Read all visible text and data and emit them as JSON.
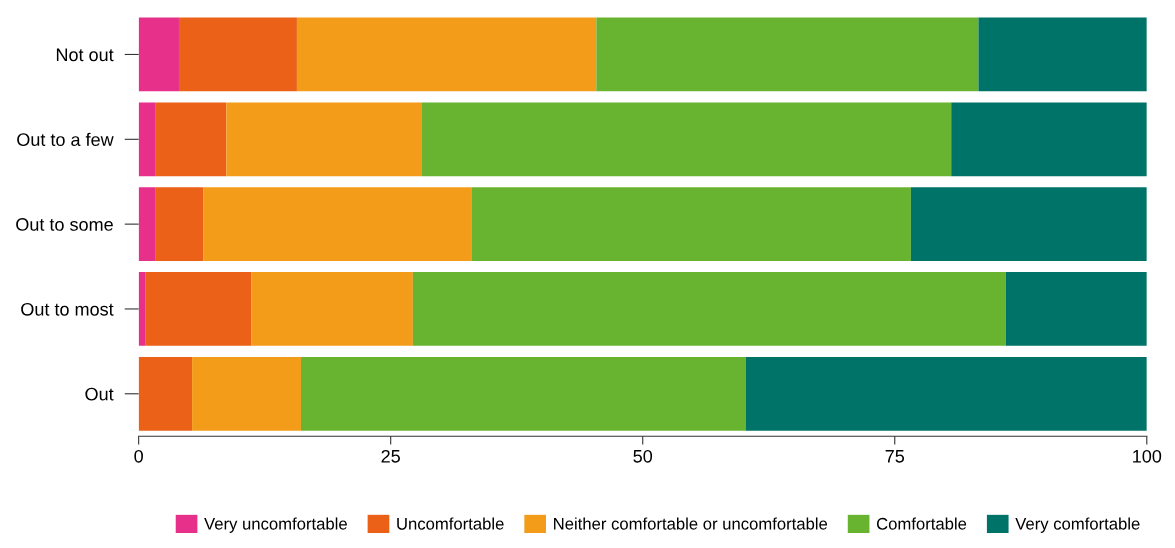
{
  "chart_data": {
    "type": "bar",
    "orientation": "horizontal",
    "stacked": true,
    "categories": [
      "Not out",
      "Out to a few",
      "Out to some",
      "Out to most",
      "Out"
    ],
    "series": [
      {
        "name": "Very uncomfortable",
        "color": "#e6308a",
        "values": [
          4.0,
          1.7,
          1.7,
          0.7,
          0
        ]
      },
      {
        "name": "Uncomfortable",
        "color": "#eb6117",
        "values": [
          11.7,
          7.0,
          4.7,
          10.5,
          5.3
        ]
      },
      {
        "name": "Neither comfortable or uncomfortable",
        "color": "#f39c19",
        "values": [
          29.7,
          19.4,
          26.6,
          16.0,
          10.8
        ]
      },
      {
        "name": "Comfortable",
        "color": "#68b431",
        "values": [
          37.9,
          52.5,
          43.6,
          58.8,
          44.1
        ]
      },
      {
        "name": "Very comfortable",
        "color": "#007369",
        "values": [
          16.7,
          19.4,
          23.4,
          14.0,
          39.8
        ]
      }
    ],
    "xlim": [
      0,
      100
    ],
    "xticks": [
      0,
      25,
      50,
      75,
      100
    ],
    "grid": false,
    "legend": "bottom"
  }
}
